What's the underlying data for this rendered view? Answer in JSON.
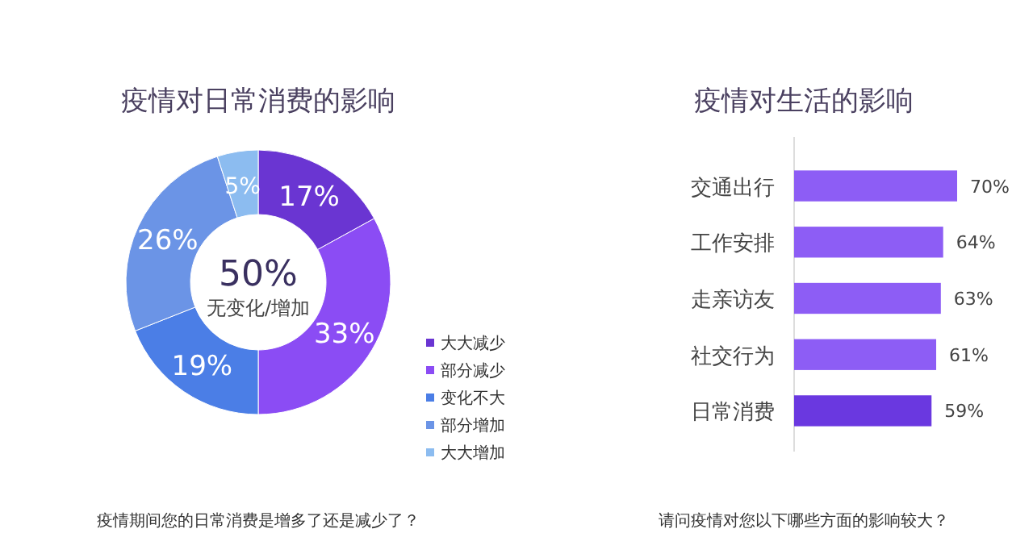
{
  "chart_data": [
    {
      "type": "donut",
      "title": "疫情对日常消费的影响",
      "categories": [
        "大大减少",
        "部分减少",
        "变化不大",
        "部分增加",
        "大大增加"
      ],
      "values": [
        17,
        33,
        19,
        26,
        5
      ],
      "colors": [
        "#6a35d2",
        "#8b4cf4",
        "#4b7ee6",
        "#6b94e6",
        "#8cbcf0"
      ],
      "value_labels": [
        "17%",
        "33%",
        "19%",
        "26%",
        "5%"
      ],
      "legend": "bottom right",
      "annotations": [
        "50%",
        "无变化/增加",
        "疫情期间您的日常消费是增多了还是减少了？"
      ]
    },
    {
      "type": "bar",
      "orientation": "horizontal",
      "title": "疫情对生活的影响",
      "categories": [
        "交通出行",
        "工作安排",
        "走亲访友",
        "社交行为",
        "日常消费"
      ],
      "values": [
        70,
        64,
        63,
        61,
        59
      ],
      "colors": [
        "#8d5df5",
        "#8d5df5",
        "#8d5df5",
        "#8d5df5",
        "#6a38e0"
      ],
      "value_labels": [
        "70%",
        "64%",
        "63%",
        "61%",
        "59%"
      ],
      "tick_labels": "y",
      "annotations": [
        "请问疫情对您以下哪些方面的影响较大？"
      ]
    }
  ]
}
